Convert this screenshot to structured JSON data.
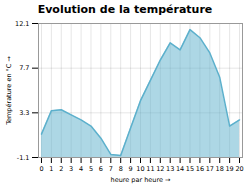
{
  "chart_data": {
    "type": "area",
    "title": "Evolution de la température",
    "xlabel": "heure par heure",
    "ylabel": "Température en °C",
    "x": [
      0,
      1,
      2,
      3,
      4,
      5,
      6,
      7,
      8,
      9,
      10,
      11,
      12,
      13,
      14,
      15,
      16,
      17,
      18,
      19,
      20
    ],
    "values": [
      1.2,
      3.5,
      3.6,
      3.1,
      2.6,
      2.0,
      0.8,
      -0.8,
      -0.9,
      1.8,
      4.5,
      6.5,
      8.5,
      10.2,
      9.5,
      11.5,
      10.7,
      9.2,
      6.8,
      2.0,
      2.6
    ],
    "color": "#5cb0cc",
    "xlim": [
      -0.3,
      20.3
    ],
    "xticks": [
      0,
      1,
      2,
      3,
      4,
      5,
      6,
      7,
      8,
      9,
      10,
      11,
      12,
      13,
      14,
      15,
      16,
      17,
      18,
      19,
      20
    ],
    "ylim": [
      -1.1,
      12.1
    ],
    "yticks": [
      -1.1,
      3.3,
      7.7,
      12.1
    ],
    "grid": true
  }
}
